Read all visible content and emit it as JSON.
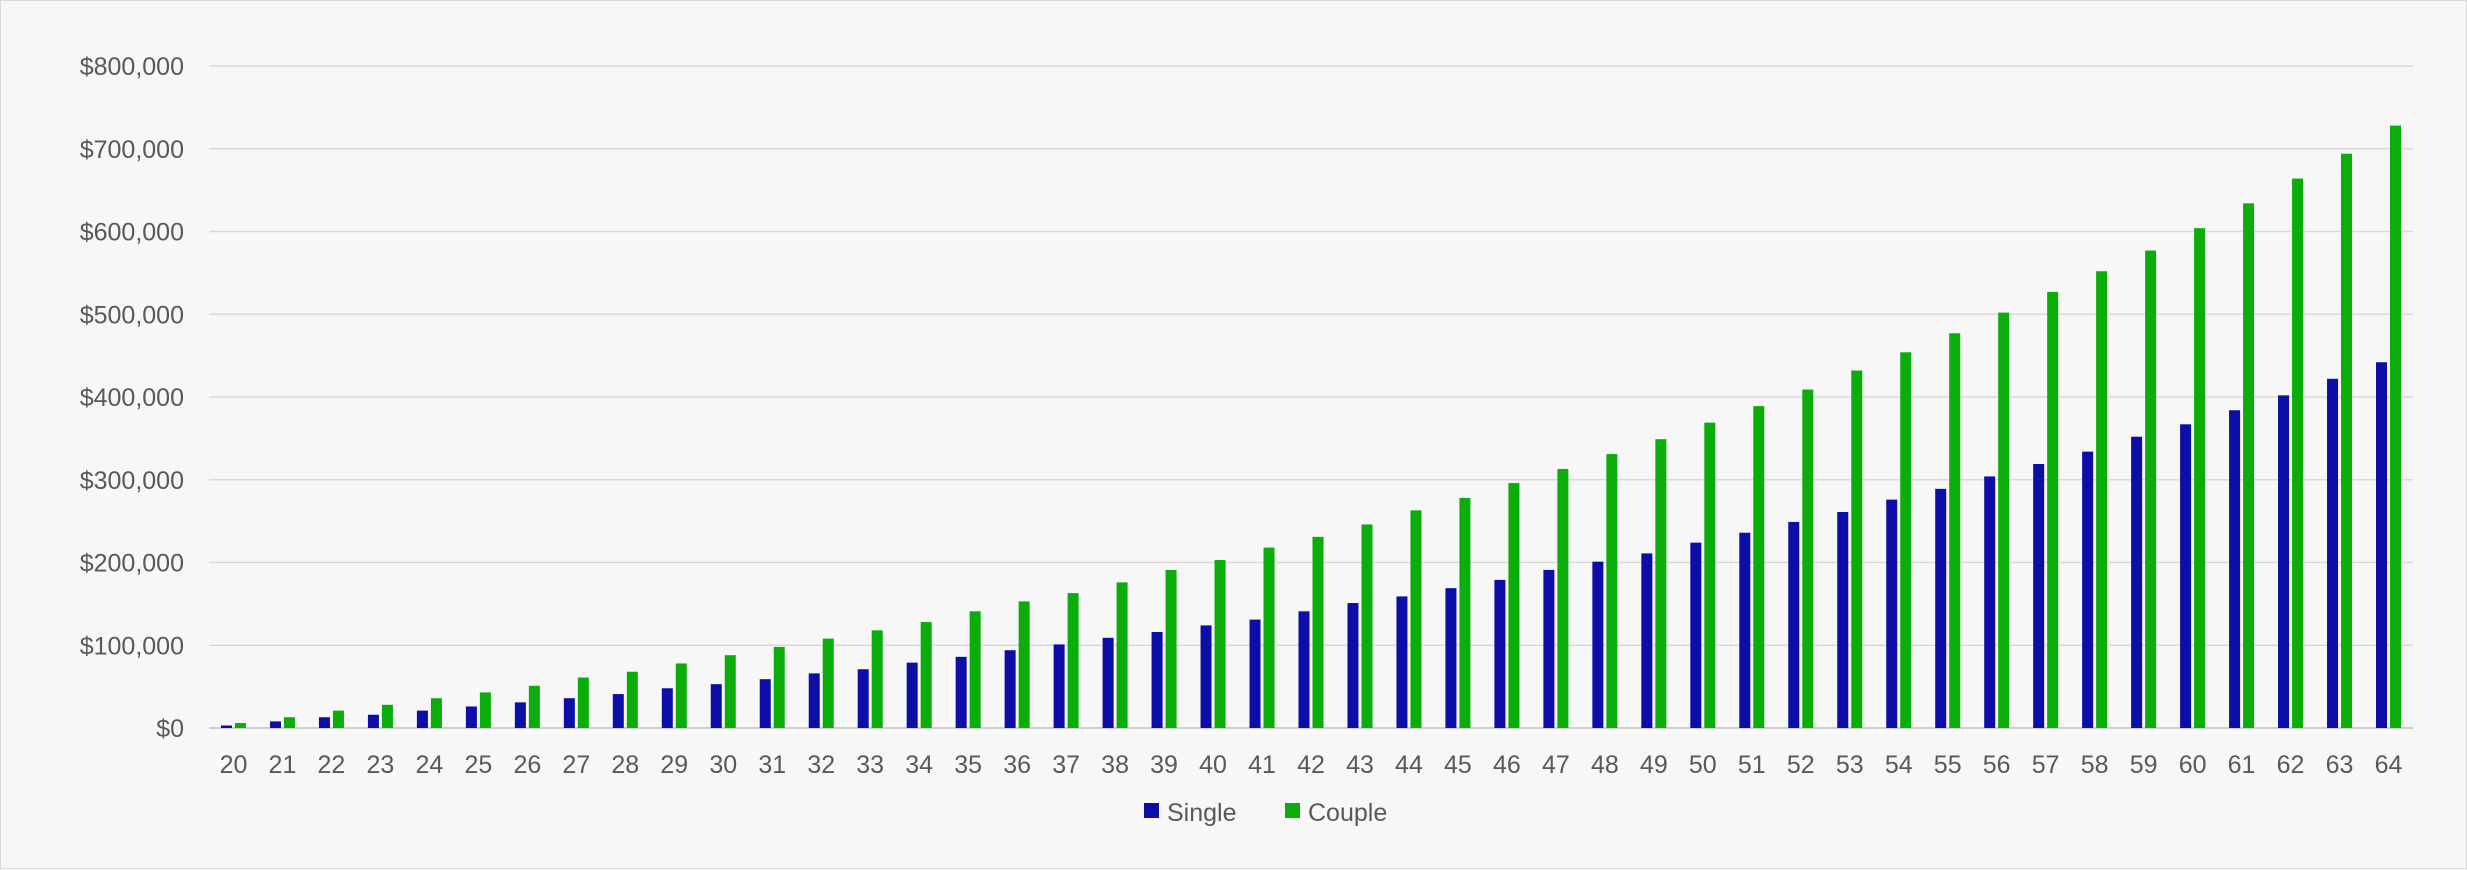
{
  "chart_data": {
    "type": "bar",
    "title": "",
    "xlabel": "",
    "ylabel": "",
    "categories": [
      "20",
      "21",
      "22",
      "23",
      "24",
      "25",
      "26",
      "27",
      "28",
      "29",
      "30",
      "31",
      "32",
      "33",
      "34",
      "35",
      "36",
      "37",
      "38",
      "39",
      "40",
      "41",
      "42",
      "43",
      "44",
      "45",
      "46",
      "47",
      "48",
      "49",
      "50",
      "51",
      "52",
      "53",
      "54",
      "55",
      "56",
      "57",
      "58",
      "59",
      "60",
      "61",
      "62",
      "63",
      "64"
    ],
    "series": [
      {
        "name": "Single",
        "color": "#0d0da8",
        "values": [
          3000,
          8000,
          13000,
          16000,
          21000,
          26000,
          31000,
          36000,
          41000,
          48000,
          53000,
          59000,
          66000,
          71000,
          79000,
          86000,
          94000,
          101000,
          109000,
          116000,
          124000,
          131000,
          141000,
          151000,
          159000,
          169000,
          179000,
          191000,
          201000,
          211000,
          224000,
          236000,
          249000,
          261000,
          276000,
          289000,
          304000,
          319000,
          334000,
          352000,
          367000,
          384000,
          402000,
          422000,
          442000
        ]
      },
      {
        "name": "Couple",
        "color": "#0aad0a",
        "values": [
          6000,
          13000,
          21000,
          28000,
          36000,
          43000,
          51000,
          61000,
          68000,
          78000,
          88000,
          98000,
          108000,
          118000,
          128000,
          141000,
          153000,
          163000,
          176000,
          191000,
          203000,
          218000,
          231000,
          246000,
          263000,
          278000,
          296000,
          313000,
          331000,
          349000,
          369000,
          389000,
          409000,
          432000,
          454000,
          477000,
          502000,
          527000,
          552000,
          577000,
          604000,
          634000,
          664000,
          694000,
          728000
        ]
      }
    ],
    "ylim": [
      0,
      800000
    ],
    "yticks": [
      0,
      100000,
      200000,
      300000,
      400000,
      500000,
      600000,
      700000,
      800000
    ],
    "ytick_labels": [
      "$0",
      "$100,000",
      "$200,000",
      "$300,000",
      "$400,000",
      "$500,000",
      "$600,000",
      "$700,000",
      "$800,000"
    ],
    "grid": true,
    "legend_position": "bottom"
  }
}
